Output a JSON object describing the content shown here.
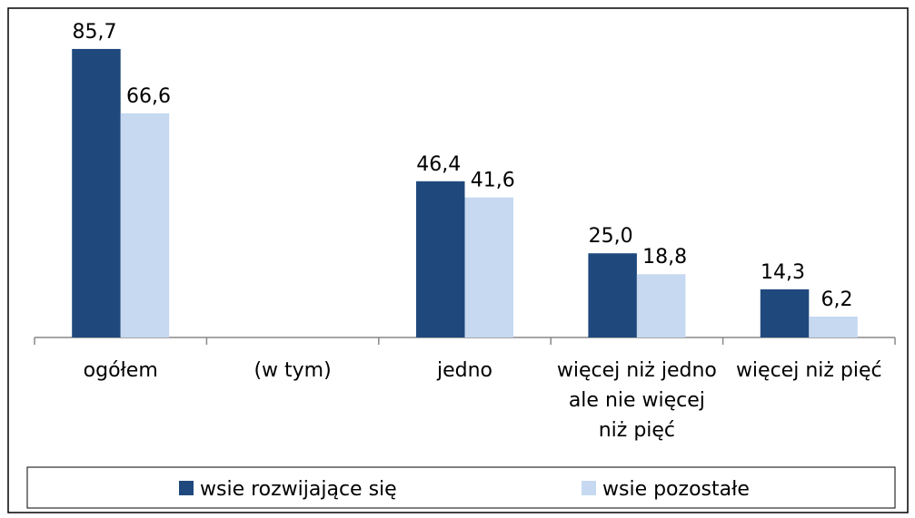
{
  "chart_data": {
    "type": "bar",
    "categories": [
      "ogółem",
      "(w tym)",
      "jedno",
      "więcej niż jedno ale nie więcej niż pięć",
      "więcej niż pięć"
    ],
    "series": [
      {
        "name": "wsie rozwijające się",
        "color": "#1f497d",
        "values": [
          85.7,
          null,
          46.4,
          25.0,
          14.3
        ],
        "value_labels": [
          "85,7",
          null,
          "46,4",
          "25,0",
          "14,3"
        ]
      },
      {
        "name": "wsie pozostałe",
        "color": "#c6d9f1",
        "values": [
          66.6,
          null,
          41.6,
          18.8,
          6.2
        ],
        "value_labels": [
          "66,6",
          null,
          "41,6",
          "18,8",
          "6,2"
        ]
      }
    ],
    "ylim": [
      0,
      90
    ]
  }
}
